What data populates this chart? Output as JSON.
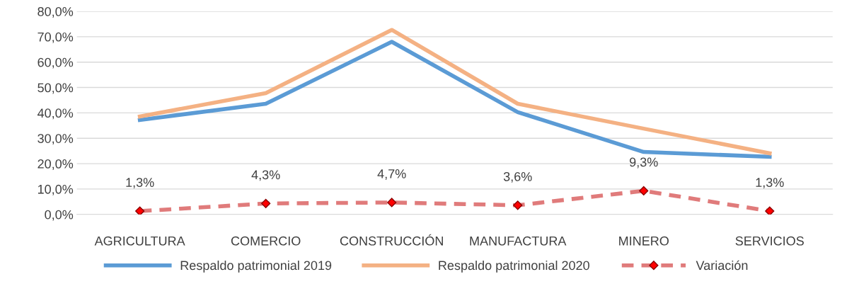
{
  "chart_data": {
    "type": "line",
    "categories": [
      "AGRICULTURA",
      "COMERCIO",
      "CONSTRUCCIÓN",
      "MANUFACTURA",
      "MINERO",
      "SERVICIOS"
    ],
    "series": [
      {
        "name": "Respaldo patrimonial 2019",
        "color": "#5b9bd5",
        "values": [
          37.2,
          43.6,
          68.0,
          40.3,
          24.6,
          22.7
        ],
        "marker": "none",
        "line_style": "solid"
      },
      {
        "name": "Respaldo patrimonial 2020",
        "color": "#f4b183",
        "values": [
          38.6,
          47.8,
          72.7,
          43.6,
          33.8,
          24.1
        ],
        "marker": "none",
        "line_style": "solid"
      },
      {
        "name": "Variación",
        "color": "#e07b7b",
        "values": [
          1.3,
          4.3,
          4.7,
          3.6,
          9.3,
          1.3
        ],
        "marker": "diamond",
        "line_style": "dashed",
        "value_labels": [
          "1,3%",
          "4,3%",
          "4,7%",
          "3,6%",
          "9,3%",
          "1,3%"
        ]
      }
    ],
    "ylim": [
      0,
      80
    ],
    "yticks": [
      {
        "value": 0,
        "label": "0,0%"
      },
      {
        "value": 10,
        "label": "10,0%"
      },
      {
        "value": 20,
        "label": "20,0%"
      },
      {
        "value": 30,
        "label": "30,0%"
      },
      {
        "value": 40,
        "label": "40,0%"
      },
      {
        "value": 50,
        "label": "50,0%"
      },
      {
        "value": 60,
        "label": "60,0%"
      },
      {
        "value": 70,
        "label": "70,0%"
      },
      {
        "value": 80,
        "label": "80,0%"
      }
    ],
    "grid": "y",
    "legend": "bottom"
  }
}
